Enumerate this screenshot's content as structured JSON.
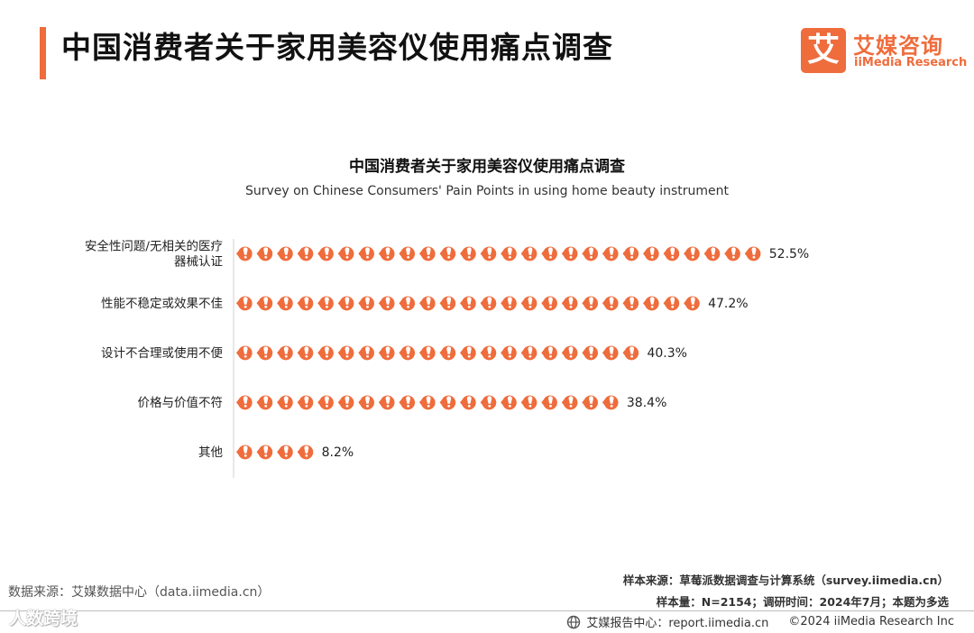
{
  "header": {
    "title": "中国消费者关于家用美容仪使用痛点调查",
    "logo_mark": "艾",
    "logo_cn": "艾媒咨询",
    "logo_en": "iiMedia Research",
    "accent_color": "#ef6c3c"
  },
  "chart_data": {
    "type": "bar",
    "title": "中国消费者关于家用美容仪使用痛点调查",
    "subtitle": "Survey on Chinese Consumers' Pain Points in using home beauty instrument",
    "categories": [
      "安全性问题/无相关的医疗器械认证",
      "性能不稳定或效果不佳",
      "设计不合理或使用不便",
      "价格与价值不符",
      "其他"
    ],
    "category_lines": [
      [
        "安全性问题/无相关的医疗",
        "器械认证"
      ],
      [
        "性能不稳定或效果不佳"
      ],
      [
        "设计不合理或使用不便"
      ],
      [
        "价格与价值不符"
      ],
      [
        "其他"
      ]
    ],
    "values": [
      52.5,
      47.2,
      40.3,
      38.4,
      8.2
    ],
    "value_labels": [
      "52.5%",
      "47.2%",
      "40.3%",
      "38.4%",
      "8.2%"
    ],
    "orientation": "horizontal",
    "mark": "pictogram-bubble-icon",
    "bar_color": "#ef6c3c",
    "grid": false,
    "legend": "none"
  },
  "footer": {
    "source_left": "数据来源：艾媒数据中心（data.iimedia.cn）",
    "sample_source": "样本来源：草莓派数据调查与计算系统（survey.iimedia.cn）",
    "sample_size": "样本量：N=2154；调研时间：2024年7月；本题为多选",
    "report_center": "艾媒报告中心：report.iimedia.cn",
    "copyright": "©2024  iiMedia Research  Inc",
    "watermark": "人数跨境"
  }
}
